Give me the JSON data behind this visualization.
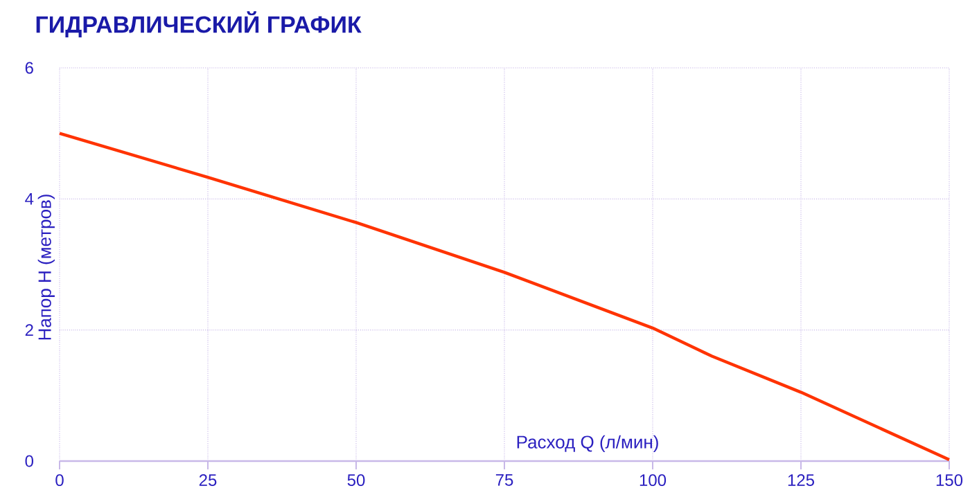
{
  "chart_data": {
    "type": "line",
    "title": "ГИДРАВЛИЧЕСКИЙ ГРАФИК",
    "xlabel": "Расход Q (л/мин)",
    "ylabel": "Напор Н (метров)",
    "x": [
      0,
      25,
      50,
      75,
      100,
      110,
      125,
      150
    ],
    "series": [
      {
        "color": "#ff3300",
        "values": [
          5.0,
          4.33,
          3.64,
          2.88,
          2.03,
          1.6,
          1.05,
          0.02
        ]
      }
    ],
    "xlim": [
      0,
      150
    ],
    "xticks": [
      0,
      25,
      50,
      75,
      100,
      125,
      150
    ],
    "ylim": [
      0,
      6
    ],
    "yticks": [
      0,
      2,
      4,
      6
    ],
    "grid": true,
    "marker": "none",
    "line_style": "solid"
  }
}
